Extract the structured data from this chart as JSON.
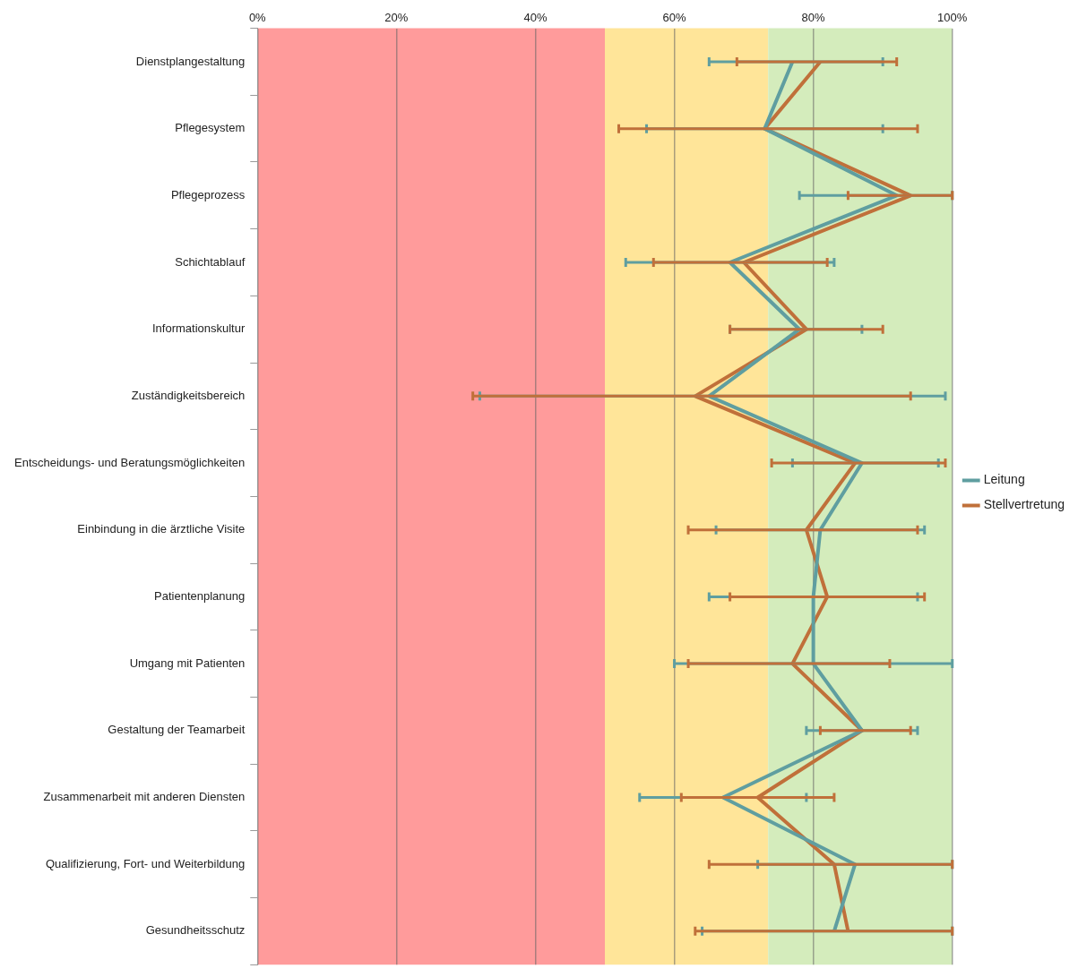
{
  "chart_data": {
    "type": "line",
    "orientation": "horizontal",
    "categories": [
      "Dienstplangestaltung",
      "Pflegesystem",
      "Pflegeprozess",
      "Schichtablauf",
      "Informationskultur",
      "Zuständigkeitsbereich",
      "Entscheidungs- und Beratungsmöglichkeiten",
      "Einbindung in die ärztliche Visite",
      "Patientenplanung",
      "Umgang mit Patienten",
      "Gestaltung der Teamarbeit",
      "Zusammenarbeit mit anderen Diensten",
      "Qualifizierung, Fort- und Weiterbildung",
      "Gesundheitsschutz"
    ],
    "series": [
      {
        "name": "Leitung",
        "color": "#5f9ea0",
        "values": [
          77,
          73,
          92,
          68,
          78,
          65,
          87,
          81,
          80,
          80,
          87,
          67,
          86,
          83
        ],
        "errors": [
          [
            65,
            90
          ],
          [
            56,
            90
          ],
          [
            78,
            100
          ],
          [
            53,
            83
          ],
          [
            68,
            87
          ],
          [
            32,
            99
          ],
          [
            77,
            98
          ],
          [
            66,
            96
          ],
          [
            65,
            95
          ],
          [
            60,
            100
          ],
          [
            79,
            95
          ],
          [
            55,
            79
          ],
          [
            72,
            100
          ],
          [
            64,
            100
          ]
        ]
      },
      {
        "name": "Stellvertretung",
        "color": "#c0703a",
        "values": [
          81,
          73,
          94,
          70,
          79,
          63,
          86,
          79,
          82,
          77,
          87,
          72,
          83,
          85
        ],
        "errors": [
          [
            69,
            92
          ],
          [
            52,
            95
          ],
          [
            85,
            100
          ],
          [
            57,
            82
          ],
          [
            68,
            90
          ],
          [
            31,
            94
          ],
          [
            74,
            99
          ],
          [
            62,
            95
          ],
          [
            68,
            96
          ],
          [
            62,
            91
          ],
          [
            81,
            94
          ],
          [
            61,
            83
          ],
          [
            65,
            100
          ],
          [
            63,
            100
          ]
        ]
      }
    ],
    "xlim": [
      0,
      100
    ],
    "xticks": [
      {
        "value": 0,
        "label": "0%"
      },
      {
        "value": 20,
        "label": "20%"
      },
      {
        "value": 40,
        "label": "40%"
      },
      {
        "value": 60,
        "label": "60%"
      },
      {
        "value": 80,
        "label": "80%"
      },
      {
        "value": 100,
        "label": "100%"
      }
    ],
    "bands": [
      {
        "axis": "x",
        "from": 0,
        "to": 50,
        "color": "#ff9b9b"
      },
      {
        "axis": "x",
        "from": 50,
        "to": 73.5,
        "color": "#ffe599"
      },
      {
        "axis": "x",
        "from": 73.5,
        "to": 100,
        "color": "#d4ecbc"
      }
    ],
    "grid": "x",
    "legend": "right",
    "marker": "none",
    "line_style": "solid"
  }
}
